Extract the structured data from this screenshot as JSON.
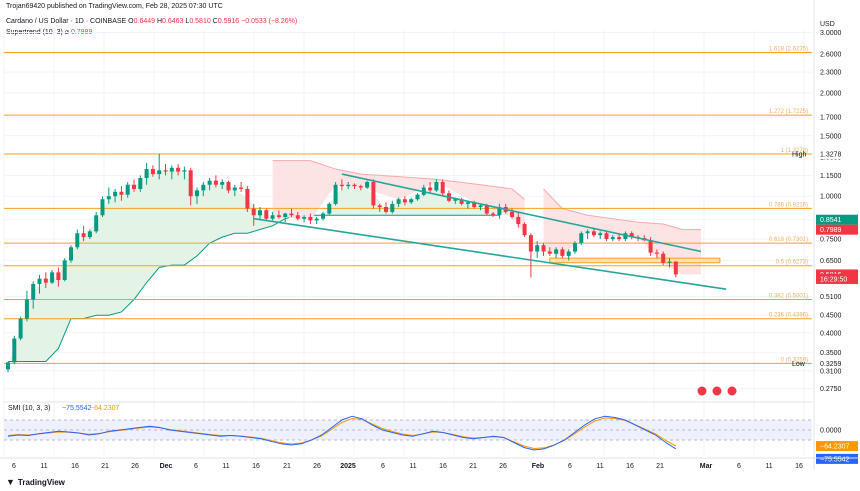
{
  "publisher_line": "Trojan69420 published on TradingView.com, Feb 28, 2025 07:30 UTC",
  "symbol_title": "Cardano / US Dollar · 1D · COINBASE",
  "ohlc": {
    "o_label": "O",
    "o": "0.6449",
    "h_label": "H",
    "h": "0.6463",
    "l_label": "L",
    "l": "0.5810",
    "c_label": "C",
    "c": "0.5916",
    "change": "−0.0533 (−8.26%)"
  },
  "supertrend": {
    "label": "Supertrend (10, 3)",
    "symbol": "⌀",
    "value": "0.7989"
  },
  "currency": "USD",
  "price_axis": {
    "ticks": [
      "3.0000",
      "2.6000",
      "2.3000",
      "2.0000",
      "1.7000",
      "1.5000",
      "1.3000",
      "1.1500",
      "1.0000",
      "0.8541",
      "0.7500",
      "0.6500",
      "0.5100",
      "0.4500",
      "0.4000",
      "0.3500",
      "0.3100",
      "0.2750"
    ],
    "badges": {
      "high_label": "High",
      "high": "1.3278",
      "level_green": "0.8541",
      "supertrend": "0.7989",
      "last_price": "0.5916",
      "countdown": "16:29:50",
      "low_label": "Low",
      "low": "0.3259"
    }
  },
  "fib_labels": [
    "1.618 (2.6235)",
    "1.272 (1.7225)",
    "1 (1.3278)",
    "0.786 (0.9216)",
    "0.618 (0.7301)",
    "0.5 (0.6273)",
    "0.382 (0.5001)",
    "0.236 (0.4396)",
    "0 (0.3259)"
  ],
  "smi": {
    "label": "SMI (10, 3, 3)",
    "value1": "−75.5542",
    "value2": "−64.2307",
    "axis_ticks": [
      "0.0000"
    ],
    "badge_orange": "−64.2307",
    "badge_blue": "−75.5542"
  },
  "time_axis": [
    "6",
    "11",
    "16",
    "21",
    "26",
    "Dec",
    "6",
    "11",
    "16",
    "21",
    "26",
    "2025",
    "6",
    "11",
    "16",
    "21",
    "26",
    "Feb",
    "6",
    "11",
    "16",
    "21",
    "Mar",
    "6",
    "11",
    "16"
  ],
  "footer": "TradingView",
  "colors": {
    "up": "#089981",
    "down": "#f23645",
    "fib": "#f7a21b",
    "trend": "#26a69a",
    "smi_blue": "#2962ff",
    "smi_orange": "#ff9800",
    "st_up_fill": "#e3f4e6",
    "st_down_fill": "#fde4e4"
  },
  "chart_data": {
    "type": "candlestick",
    "symbol": "ADA/USD",
    "interval": "1D",
    "scale": "log",
    "ylim": [
      0.26,
      3.05
    ],
    "candles": [
      {
        "o": 0.313,
        "h": 0.329,
        "l": 0.307,
        "c": 0.328
      },
      {
        "o": 0.328,
        "h": 0.392,
        "l": 0.324,
        "c": 0.385
      },
      {
        "o": 0.385,
        "h": 0.446,
        "l": 0.38,
        "c": 0.44
      },
      {
        "o": 0.44,
        "h": 0.53,
        "l": 0.432,
        "c": 0.5
      },
      {
        "o": 0.5,
        "h": 0.565,
        "l": 0.47,
        "c": 0.555
      },
      {
        "o": 0.555,
        "h": 0.59,
        "l": 0.52,
        "c": 0.575
      },
      {
        "o": 0.575,
        "h": 0.6,
        "l": 0.54,
        "c": 0.56
      },
      {
        "o": 0.56,
        "h": 0.61,
        "l": 0.555,
        "c": 0.6
      },
      {
        "o": 0.6,
        "h": 0.62,
        "l": 0.545,
        "c": 0.57
      },
      {
        "o": 0.57,
        "h": 0.66,
        "l": 0.565,
        "c": 0.65
      },
      {
        "o": 0.65,
        "h": 0.72,
        "l": 0.64,
        "c": 0.71
      },
      {
        "o": 0.71,
        "h": 0.8,
        "l": 0.7,
        "c": 0.78
      },
      {
        "o": 0.78,
        "h": 0.82,
        "l": 0.74,
        "c": 0.76
      },
      {
        "o": 0.76,
        "h": 0.8,
        "l": 0.75,
        "c": 0.79
      },
      {
        "o": 0.79,
        "h": 0.9,
        "l": 0.78,
        "c": 0.88
      },
      {
        "o": 0.88,
        "h": 1.0,
        "l": 0.87,
        "c": 0.98
      },
      {
        "o": 0.98,
        "h": 1.06,
        "l": 0.95,
        "c": 1.0
      },
      {
        "o": 1.0,
        "h": 1.05,
        "l": 0.96,
        "c": 1.03
      },
      {
        "o": 1.03,
        "h": 1.07,
        "l": 0.97,
        "c": 1.01
      },
      {
        "o": 1.01,
        "h": 1.1,
        "l": 0.99,
        "c": 1.08
      },
      {
        "o": 1.08,
        "h": 1.12,
        "l": 1.03,
        "c": 1.05
      },
      {
        "o": 1.05,
        "h": 1.15,
        "l": 1.03,
        "c": 1.13
      },
      {
        "o": 1.13,
        "h": 1.25,
        "l": 1.08,
        "c": 1.2
      },
      {
        "o": 1.2,
        "h": 1.23,
        "l": 1.14,
        "c": 1.16
      },
      {
        "o": 1.16,
        "h": 1.328,
        "l": 1.12,
        "c": 1.19
      },
      {
        "o": 1.19,
        "h": 1.24,
        "l": 1.15,
        "c": 1.18
      },
      {
        "o": 1.18,
        "h": 1.23,
        "l": 1.12,
        "c": 1.21
      },
      {
        "o": 1.21,
        "h": 1.24,
        "l": 1.15,
        "c": 1.18
      },
      {
        "o": 1.18,
        "h": 1.22,
        "l": 1.12,
        "c": 1.19
      },
      {
        "o": 1.19,
        "h": 1.21,
        "l": 0.94,
        "c": 1.0
      },
      {
        "o": 1.0,
        "h": 1.06,
        "l": 0.95,
        "c": 1.04
      },
      {
        "o": 1.04,
        "h": 1.1,
        "l": 1.0,
        "c": 1.08
      },
      {
        "o": 1.08,
        "h": 1.13,
        "l": 1.04,
        "c": 1.11
      },
      {
        "o": 1.11,
        "h": 1.15,
        "l": 1.06,
        "c": 1.08
      },
      {
        "o": 1.08,
        "h": 1.12,
        "l": 1.05,
        "c": 1.1
      },
      {
        "o": 1.1,
        "h": 1.11,
        "l": 1.02,
        "c": 1.04
      },
      {
        "o": 1.04,
        "h": 1.08,
        "l": 1.0,
        "c": 1.06
      },
      {
        "o": 1.06,
        "h": 1.1,
        "l": 1.03,
        "c": 1.05
      },
      {
        "o": 1.05,
        "h": 1.07,
        "l": 0.9,
        "c": 0.92
      },
      {
        "o": 0.92,
        "h": 0.95,
        "l": 0.82,
        "c": 0.88
      },
      {
        "o": 0.88,
        "h": 0.93,
        "l": 0.86,
        "c": 0.91
      },
      {
        "o": 0.91,
        "h": 0.92,
        "l": 0.85,
        "c": 0.86
      },
      {
        "o": 0.86,
        "h": 0.9,
        "l": 0.85,
        "c": 0.88
      },
      {
        "o": 0.88,
        "h": 0.91,
        "l": 0.86,
        "c": 0.87
      },
      {
        "o": 0.87,
        "h": 0.895,
        "l": 0.84,
        "c": 0.89
      },
      {
        "o": 0.89,
        "h": 0.92,
        "l": 0.87,
        "c": 0.88
      },
      {
        "o": 0.88,
        "h": 0.9,
        "l": 0.85,
        "c": 0.86
      },
      {
        "o": 0.86,
        "h": 0.88,
        "l": 0.84,
        "c": 0.87
      },
      {
        "o": 0.87,
        "h": 0.89,
        "l": 0.83,
        "c": 0.85
      },
      {
        "o": 0.85,
        "h": 0.87,
        "l": 0.83,
        "c": 0.86
      },
      {
        "o": 0.86,
        "h": 0.9,
        "l": 0.85,
        "c": 0.89
      },
      {
        "o": 0.89,
        "h": 0.96,
        "l": 0.88,
        "c": 0.95
      },
      {
        "o": 0.95,
        "h": 1.1,
        "l": 0.94,
        "c": 1.08
      },
      {
        "o": 1.08,
        "h": 1.12,
        "l": 1.04,
        "c": 1.07
      },
      {
        "o": 1.07,
        "h": 1.1,
        "l": 1.05,
        "c": 1.08
      },
      {
        "o": 1.08,
        "h": 1.09,
        "l": 1.05,
        "c": 1.07
      },
      {
        "o": 1.07,
        "h": 1.08,
        "l": 1.04,
        "c": 1.06
      },
      {
        "o": 1.06,
        "h": 1.11,
        "l": 1.05,
        "c": 1.1
      },
      {
        "o": 1.1,
        "h": 1.12,
        "l": 0.92,
        "c": 0.94
      },
      {
        "o": 0.94,
        "h": 0.95,
        "l": 0.9,
        "c": 0.93
      },
      {
        "o": 0.93,
        "h": 0.96,
        "l": 0.89,
        "c": 0.9
      },
      {
        "o": 0.9,
        "h": 0.97,
        "l": 0.89,
        "c": 0.95
      },
      {
        "o": 0.95,
        "h": 0.99,
        "l": 0.93,
        "c": 0.98
      },
      {
        "o": 0.98,
        "h": 1.0,
        "l": 0.94,
        "c": 0.96
      },
      {
        "o": 0.96,
        "h": 0.99,
        "l": 0.95,
        "c": 0.98
      },
      {
        "o": 0.98,
        "h": 1.02,
        "l": 0.97,
        "c": 1.01
      },
      {
        "o": 1.01,
        "h": 1.08,
        "l": 1.0,
        "c": 1.06
      },
      {
        "o": 1.06,
        "h": 1.1,
        "l": 1.02,
        "c": 1.04
      },
      {
        "o": 1.04,
        "h": 1.12,
        "l": 1.03,
        "c": 1.1
      },
      {
        "o": 1.1,
        "h": 1.12,
        "l": 1.0,
        "c": 1.02
      },
      {
        "o": 1.02,
        "h": 1.04,
        "l": 0.96,
        "c": 0.97
      },
      {
        "o": 0.97,
        "h": 0.99,
        "l": 0.95,
        "c": 0.98
      },
      {
        "o": 0.98,
        "h": 0.99,
        "l": 0.94,
        "c": 0.95
      },
      {
        "o": 0.95,
        "h": 0.97,
        "l": 0.92,
        "c": 0.96
      },
      {
        "o": 0.96,
        "h": 0.97,
        "l": 0.92,
        "c": 0.93
      },
      {
        "o": 0.93,
        "h": 0.95,
        "l": 0.91,
        "c": 0.94
      },
      {
        "o": 0.94,
        "h": 0.95,
        "l": 0.88,
        "c": 0.89
      },
      {
        "o": 0.89,
        "h": 0.9,
        "l": 0.87,
        "c": 0.88
      },
      {
        "o": 0.88,
        "h": 0.95,
        "l": 0.86,
        "c": 0.93
      },
      {
        "o": 0.93,
        "h": 0.95,
        "l": 0.89,
        "c": 0.9
      },
      {
        "o": 0.9,
        "h": 0.92,
        "l": 0.86,
        "c": 0.87
      },
      {
        "o": 0.87,
        "h": 0.9,
        "l": 0.81,
        "c": 0.83
      },
      {
        "o": 0.83,
        "h": 0.84,
        "l": 0.76,
        "c": 0.77
      },
      {
        "o": 0.77,
        "h": 0.78,
        "l": 0.58,
        "c": 0.69
      },
      {
        "o": 0.69,
        "h": 0.74,
        "l": 0.66,
        "c": 0.72
      },
      {
        "o": 0.72,
        "h": 0.73,
        "l": 0.67,
        "c": 0.69
      },
      {
        "o": 0.69,
        "h": 0.71,
        "l": 0.67,
        "c": 0.68
      },
      {
        "o": 0.68,
        "h": 0.71,
        "l": 0.66,
        "c": 0.7
      },
      {
        "o": 0.7,
        "h": 0.71,
        "l": 0.66,
        "c": 0.67
      },
      {
        "o": 0.67,
        "h": 0.7,
        "l": 0.65,
        "c": 0.69
      },
      {
        "o": 0.69,
        "h": 0.74,
        "l": 0.68,
        "c": 0.73
      },
      {
        "o": 0.73,
        "h": 0.79,
        "l": 0.72,
        "c": 0.78
      },
      {
        "o": 0.78,
        "h": 0.8,
        "l": 0.75,
        "c": 0.79
      },
      {
        "o": 0.79,
        "h": 0.81,
        "l": 0.76,
        "c": 0.77
      },
      {
        "o": 0.77,
        "h": 0.79,
        "l": 0.75,
        "c": 0.78
      },
      {
        "o": 0.78,
        "h": 0.79,
        "l": 0.74,
        "c": 0.75
      },
      {
        "o": 0.75,
        "h": 0.77,
        "l": 0.74,
        "c": 0.76
      },
      {
        "o": 0.76,
        "h": 0.78,
        "l": 0.74,
        "c": 0.75
      },
      {
        "o": 0.75,
        "h": 0.79,
        "l": 0.74,
        "c": 0.78
      },
      {
        "o": 0.78,
        "h": 0.79,
        "l": 0.75,
        "c": 0.76
      },
      {
        "o": 0.76,
        "h": 0.77,
        "l": 0.74,
        "c": 0.755
      },
      {
        "o": 0.755,
        "h": 0.77,
        "l": 0.74,
        "c": 0.745
      },
      {
        "o": 0.745,
        "h": 0.76,
        "l": 0.67,
        "c": 0.685
      },
      {
        "o": 0.685,
        "h": 0.7,
        "l": 0.66,
        "c": 0.68
      },
      {
        "o": 0.68,
        "h": 0.69,
        "l": 0.63,
        "c": 0.64
      },
      {
        "o": 0.64,
        "h": 0.66,
        "l": 0.62,
        "c": 0.645
      },
      {
        "o": 0.6449,
        "h": 0.6463,
        "l": 0.581,
        "c": 0.5916
      }
    ],
    "fib_levels": [
      {
        "ratio": "1.618",
        "price": 2.6235
      },
      {
        "ratio": "1.272",
        "price": 1.7225
      },
      {
        "ratio": "1",
        "price": 1.3278
      },
      {
        "ratio": "0.786",
        "price": 0.9216
      },
      {
        "ratio": "0.618",
        "price": 0.7301
      },
      {
        "ratio": "0.5",
        "price": 0.6273
      },
      {
        "ratio": "0.382",
        "price": 0.5001
      },
      {
        "ratio": "0.236",
        "price": 0.4396
      },
      {
        "ratio": "0",
        "price": 0.3259
      }
    ],
    "horizontal_zone": [
      0.64,
      0.66
    ],
    "channel_upper": [
      [
        53,
        1.16
      ],
      [
        110,
        0.69
      ]
    ],
    "channel_lower": [
      [
        39,
        0.86
      ],
      [
        114,
        0.536
      ]
    ],
    "supertrend_up_end_index": 83,
    "supertrend_up": [
      0.33,
      0.33,
      0.33,
      0.33,
      0.36,
      0.44,
      0.44,
      0.45,
      0.45,
      0.46,
      0.5,
      0.56,
      0.62,
      0.63,
      0.63,
      0.67,
      0.73,
      0.76,
      0.78,
      0.78,
      0.8,
      0.82,
      0.86,
      0.88,
      0.88,
      0.88,
      0.88,
      0.88,
      0.88,
      0.88,
      0.88,
      0.88,
      0.88,
      0.88,
      0.88,
      0.88,
      0.88,
      0.88,
      0.88,
      0.88
    ],
    "smi_blue": [
      -25,
      -20,
      -22,
      -15,
      -10,
      -5,
      -8,
      -12,
      -20,
      -15,
      -5,
      0,
      5,
      10,
      15,
      10,
      0,
      -5,
      -10,
      -15,
      -20,
      -25,
      -22,
      -25,
      -30,
      -35,
      -45,
      -55,
      -60,
      -55,
      -40,
      -20,
      10,
      40,
      55,
      45,
      20,
      0,
      -10,
      -20,
      -25,
      -15,
      -5,
      -10,
      -20,
      -30,
      -35,
      -30,
      -25,
      -30,
      -50,
      -70,
      -80,
      -75,
      -60,
      -40,
      -10,
      20,
      45,
      55,
      50,
      40,
      20,
      0,
      -20,
      -50,
      -75
    ],
    "smi_orange": [
      -22,
      -18,
      -20,
      -16,
      -12,
      -8,
      -9,
      -12,
      -17,
      -14,
      -7,
      -2,
      3,
      8,
      12,
      9,
      2,
      -3,
      -8,
      -13,
      -18,
      -22,
      -22,
      -24,
      -28,
      -33,
      -42,
      -51,
      -56,
      -52,
      -40,
      -23,
      3,
      30,
      46,
      42,
      24,
      6,
      -6,
      -16,
      -22,
      -16,
      -8,
      -10,
      -18,
      -27,
      -32,
      -30,
      -27,
      -30,
      -47,
      -64,
      -74,
      -71,
      -59,
      -41,
      -15,
      12,
      36,
      48,
      46,
      38,
      21,
      3,
      -16,
      -42,
      -64
    ]
  }
}
